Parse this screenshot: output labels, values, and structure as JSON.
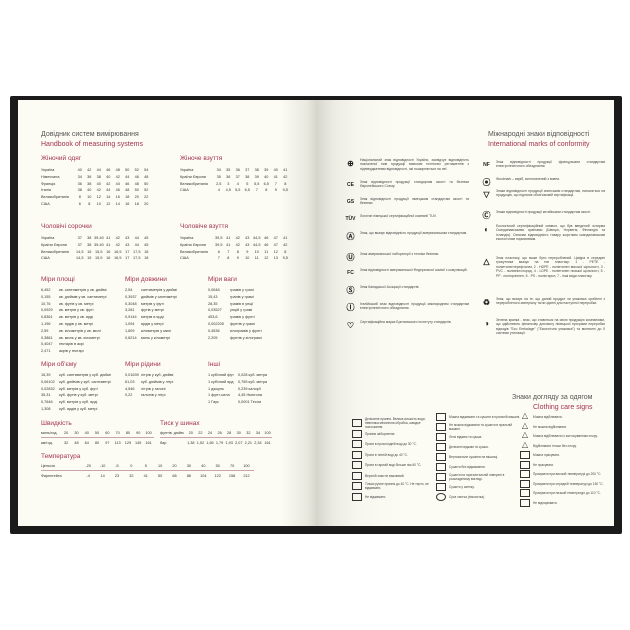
{
  "left": {
    "title": "Довідник систем вимірювання",
    "subtitle": "Handbook of measuring systems",
    "womens_clothing": {
      "title": "Жіночий одяг",
      "rows": [
        {
          "label": "Україна",
          "values": [
            "40",
            "42",
            "44",
            "46",
            "48",
            "50",
            "52",
            "54"
          ]
        },
        {
          "label": "Німеччина",
          "values": [
            "34",
            "36",
            "38",
            "40",
            "42",
            "44",
            "46",
            "48"
          ]
        },
        {
          "label": "Франція",
          "values": [
            "36",
            "38",
            "40",
            "42",
            "44",
            "46",
            "48",
            "50"
          ]
        },
        {
          "label": "Італія",
          "values": [
            "38",
            "40",
            "42",
            "44",
            "46",
            "48",
            "50",
            "52"
          ]
        },
        {
          "label": "Великобританія",
          "values": [
            "8",
            "10",
            "12",
            "14",
            "16",
            "18",
            "20",
            "22"
          ]
        },
        {
          "label": "США",
          "values": [
            "6",
            "8",
            "10",
            "12",
            "14",
            "16",
            "18",
            "20"
          ]
        }
      ]
    },
    "womens_shoes": {
      "title": "Жіноче взуття",
      "rows": [
        {
          "label": "Україна",
          "values": [
            "34",
            "35",
            "36",
            "37",
            "38",
            "39",
            "40",
            "41"
          ]
        },
        {
          "label": "Країни Європи",
          "values": [
            "35",
            "36",
            "37",
            "38",
            "39",
            "40",
            "41",
            "42"
          ]
        },
        {
          "label": "Великобританія",
          "values": [
            "2,5",
            "3",
            "4",
            "5",
            "5,5",
            "6,5",
            "7",
            "8"
          ]
        },
        {
          "label": "США",
          "values": [
            "4",
            "4,5",
            "5,5",
            "6,5",
            "7",
            "8",
            "9",
            "9,5"
          ]
        }
      ]
    },
    "mens_shirts": {
      "title": "Чоловічі сорочки",
      "rows": [
        {
          "label": "Україна",
          "values": [
            "37",
            "38",
            "39-40",
            "41",
            "42",
            "43",
            "44",
            "45"
          ]
        },
        {
          "label": "Країни Європи",
          "values": [
            "37",
            "38",
            "39-40",
            "41",
            "42",
            "43",
            "44",
            "45"
          ]
        },
        {
          "label": "Великобританія",
          "values": [
            "14,5",
            "15",
            "15,5",
            "16",
            "16,5",
            "17",
            "17,5",
            "18"
          ]
        },
        {
          "label": "США",
          "values": [
            "14,5",
            "15",
            "15,5",
            "16",
            "16,5",
            "17",
            "17,5",
            "18"
          ]
        }
      ]
    },
    "mens_shoes": {
      "title": "Чоловіче взуття",
      "rows": [
        {
          "label": "Україна",
          "values": [
            "39,5",
            "41",
            "42",
            "43",
            "44,5",
            "46",
            "47",
            "41"
          ]
        },
        {
          "label": "Країни Європи",
          "values": [
            "39,5",
            "41",
            "42",
            "43",
            "44,5",
            "46",
            "47",
            "42"
          ]
        },
        {
          "label": "Великобританія",
          "values": [
            "6",
            "7",
            "8",
            "9",
            "10",
            "11",
            "12",
            "8"
          ]
        },
        {
          "label": "США",
          "values": [
            "7",
            "8",
            "9",
            "10",
            "11",
            "12",
            "13",
            "9,5"
          ]
        }
      ]
    },
    "area": {
      "title": "Міри площі",
      "rows": [
        [
          "6,452",
          "кв. сантиметрів у кв. дюймі"
        ],
        [
          "0,155",
          "кв. дюймів у кв. сантиметрі"
        ],
        [
          "10,76",
          "кв. футів у кв. метрі"
        ],
        [
          "0,0929",
          "кв. метрів у кв. футі"
        ],
        [
          "0,8361",
          "кв. метрів у кв. ярді"
        ],
        [
          "1,196",
          "кв. ярдів у кв. метрі"
        ],
        [
          "2,59",
          "кв. кілометрів у кв. милі"
        ],
        [
          "0,3861",
          "кв. миль у кв. кілометрі"
        ],
        [
          "0,4047",
          "гектарів в акрі"
        ],
        [
          "2,471",
          "акрів у гектарі"
        ]
      ]
    },
    "length": {
      "title": "Міри довжини",
      "rows": [
        [
          "2,54",
          "сантиметрів у дюймі"
        ],
        [
          "0,3937",
          "дюймів у сантиметрі"
        ],
        [
          "0,3048",
          "метрів у футі"
        ],
        [
          "3,281",
          "футів у метрі"
        ],
        [
          "0,9144",
          "метрів в ярді"
        ],
        [
          "1,094",
          "ярдів у метрі"
        ],
        [
          "1,609",
          "кілометрів у милі"
        ],
        [
          "0,6214",
          "миль у кілометрі"
        ]
      ]
    },
    "weight": {
      "title": "Міри ваги",
      "rows": [
        [
          "0,0648",
          "грамів у грані"
        ],
        [
          "15,43",
          "гранів у грамі"
        ],
        [
          "28,35",
          "грамів в унції"
        ],
        [
          "0,03527",
          "унцій у грамі"
        ],
        [
          "453,6",
          "грамів у фунті"
        ],
        [
          "0,002205",
          "фунтів у грамі"
        ],
        [
          "0,4536",
          "кілограмів у фунті"
        ],
        [
          "2,205",
          "фунтів у кілограмі"
        ]
      ]
    },
    "volume": {
      "title": "Міри об'єму",
      "rows": [
        [
          "16,39",
          "куб. сантиметрів у куб. дюймі"
        ],
        [
          "0,06102",
          "куб. дюймів у куб. сантиметрі"
        ],
        [
          "0,02832",
          "куб. метрів у куб. футі"
        ],
        [
          "35,31",
          "куб. футів у куб. метрі"
        ],
        [
          "0,7646",
          "куб. метрів у куб. ярді"
        ],
        [
          "1,308",
          "куб. ярдів у куб. метрі"
        ]
      ]
    },
    "liquid": {
      "title": "Міри рідини",
      "rows": [
        [
          "0,01639",
          "літрів у куб. дюймі"
        ],
        [
          "61,03",
          "куб. дюймів у літрі"
        ],
        [
          "4,546",
          "літрів у галоні"
        ],
        [
          "0,22",
          "галонів у літрі"
        ]
      ]
    },
    "other": {
      "title": "Інші",
      "rows": [
        [
          "1 кубічний фут",
          "0,028 куб. метра"
        ],
        [
          "1 кубічний ярд",
          "0,765 куб. метра"
        ],
        [
          "1 джоуль",
          "0,239 калорії"
        ],
        [
          "1 фунт-сила",
          "4,45 Ньютона"
        ],
        [
          "1 Гаус",
          "0,0001 Тесли"
        ]
      ]
    },
    "speed": {
      "title": "Швидкість",
      "rows": [
        {
          "label": "миль/год.",
          "values": [
            "20",
            "30",
            "40",
            "50",
            "60",
            "70",
            "80",
            "90",
            "100"
          ]
        },
        {
          "label": "км/год.",
          "values": [
            "32",
            "48",
            "64",
            "80",
            "97",
            "113",
            "129",
            "145",
            "161"
          ]
        }
      ]
    },
    "tire": {
      "title": "Тиск у шинах",
      "rows": [
        {
          "label": "фунтів. дюйм",
          "values": [
            "20",
            "22",
            "24",
            "26",
            "28",
            "30",
            "32",
            "34",
            "100"
          ]
        },
        {
          "label": "бар",
          "values": [
            "1,38",
            "1,52",
            "1,65",
            "1,79",
            "1,93",
            "2,07",
            "2,21",
            "2,34",
            "161"
          ]
        }
      ]
    },
    "temperature": {
      "title": "Температура",
      "rows": [
        {
          "label": "Цельсія",
          "values": [
            "-20",
            "-10",
            "-5",
            "0",
            "5",
            "10",
            "20",
            "30",
            "40",
            "50",
            "70",
            "100"
          ]
        },
        {
          "label": "Фаренгейта",
          "values": [
            "-4",
            "14",
            "23",
            "32",
            "41",
            "50",
            "68",
            "86",
            "104",
            "122",
            "158",
            "212"
          ]
        }
      ]
    }
  },
  "right": {
    "title": "Міжнародні знаки відповідності",
    "subtitle": "International marks of conformity",
    "marks_left": [
      {
        "icon": "ua-conformity-icon",
        "glyph": "⊕",
        "text": "Національний знак відповідності України, засвідчує відповідність позначеної ним продукції вимогам технічних регламентів з підтвердженням відповідності, які поширюються на неї."
      },
      {
        "icon": "ce-icon",
        "glyph": "CE",
        "text": "Знак відповідності продукції стандартам якості та безпеки Європейського Союзу."
      },
      {
        "icon": "gs-icon",
        "glyph": "GS",
        "text": "Знак відповідності продукції німецьким стандартам якості та безпеки."
      },
      {
        "icon": "tuv-icon",
        "glyph": "TÜV",
        "text": "Логотип німецької сертифікаційної компанії TUV."
      },
      {
        "icon": "ansi-icon",
        "glyph": "Ⓐ",
        "text": "Знак, що вказує відповідність продукції американським стандартам."
      },
      {
        "icon": "ul-icon",
        "glyph": "Ⓤ",
        "text": "Знак американської лабораторії з техніки безпеки."
      },
      {
        "icon": "fcc-icon",
        "glyph": "FC",
        "text": "Знак відповідності американської Федеральної комісії з комунікацій."
      },
      {
        "icon": "csa-icon",
        "glyph": "Ⓢ",
        "text": "Знак Канадської Асоціації стандартів."
      },
      {
        "icon": "iec-icon",
        "glyph": "Ⓘ",
        "text": "Італійський знак відповідності продукції міжнародним стандартам електротехнічного обладнання."
      },
      {
        "icon": "bsi-kitemark-icon",
        "glyph": "♡",
        "text": "Сертифікаційна марка Британського інституту стандартів."
      }
    ],
    "marks_right": [
      {
        "icon": "nf-icon",
        "glyph": "NF",
        "text": "Знак відповідності продукції французьким стандартам електротехнічного обладнання."
      },
      {
        "icon": "woolmark-icon",
        "glyph": "⦿",
        "text": "Woolmark – виріб, виготовлений з вовни."
      },
      {
        "icon": "jis-icon",
        "glyph": "▽",
        "text": "Знаки відповідності продукції японським стандартам, наносяться на продукцію, що підлягає обов'язковій сертифікації."
      },
      {
        "icon": "ccc-icon",
        "glyph": "Ⓒ",
        "text": "Знаки відповідності продукції китайським стандартам якості."
      },
      {
        "icon": "nordic-swan-icon",
        "glyph": "◐",
        "text": "Екологічний сертифікаційний символ, що був введений чотирма Скандинавськими країнами (Швеція, Норвегія, Фінляндія та Ісландія). Означає відповідність товару жорстким скандинавським екологічним нормативам."
      },
      {
        "icon": "plastic-recycle-icon",
        "glyph": "△",
        "text": "Знак пластику, що може бути перероблений. Цифра в середині трикутника вказує на тип пластику: 1 - PETE - поліетилентерефталат, 2 - HDPE - поліетилен високої щільності, 3 - PVC - полівінілхлорид, 4 - LDPE - поліетилен низької щільності, 5 - PP - поліпропілен, 6 - PS - полістирол, 7 - інші види пластику."
      },
      {
        "icon": "recycled-icon",
        "glyph": "♻",
        "text": "Знак, що вказує на те, що даний продукт чи упаковка зроблені з переробленого матеріалу та/чи здатні для наступної переробки."
      },
      {
        "icon": "green-dot-icon",
        "glyph": "◑",
        "text": "Зелена крапка - знак, що ставиться на свою продукцію компаніями, що здійснюють фінансову допомогу німецької програми переробки відходів \"Eco Embalage\" (\"Екологічна упаковка\") та включені до її системи утилізації."
      }
    ],
    "care_title": "Знаки догляду за одягом",
    "care_subtitle": "Clothing care signs",
    "care_col1": [
      "Делікатне прання. Велика кількість води, невелика механічна обробка, швидке полоскання.",
      "Прання заборонене.",
      "Прати в прохолодній воді до 30 °С.",
      "Прати в теплій воді до 40 °С.",
      "Прати в гарячій воді більше ніж 60 °С.",
      "Верхній знак не важливий.",
      "Тільки ручне прання до 40 °С. Не терти, не віджимати.",
      "Не віджимати."
    ],
    "care_col2": [
      "Можна віджимати та сушити в пральній машині.",
      "Не можна віджимати та сушити в пральній машині.",
      "Легкі віджим та сушка.",
      "Делікатні віджим та сушка.",
      "Вертикальне сушіння на вішалці.",
      "Сушити без віджимання.",
      "Сушити на горизонтальній поверхні в розкладеному вигляді.",
      "Сушити у затінку.",
      "Суха чистка (хімчистка)."
    ],
    "care_col3": [
      "Можна відбілювати.",
      "Не можна відбілювати.",
      "Можна відбілювати із застосуванням хлору.",
      "Відбілювати тільки без хлору.",
      "Можна прасувати.",
      "Не прасувати.",
      "Прасувати при високій температурі до 200 °С.",
      "Прасувати при середній температурі до 150 °С.",
      "Прасувати при низькій температурі до 110 °С.",
      "Не відпарювати."
    ]
  }
}
